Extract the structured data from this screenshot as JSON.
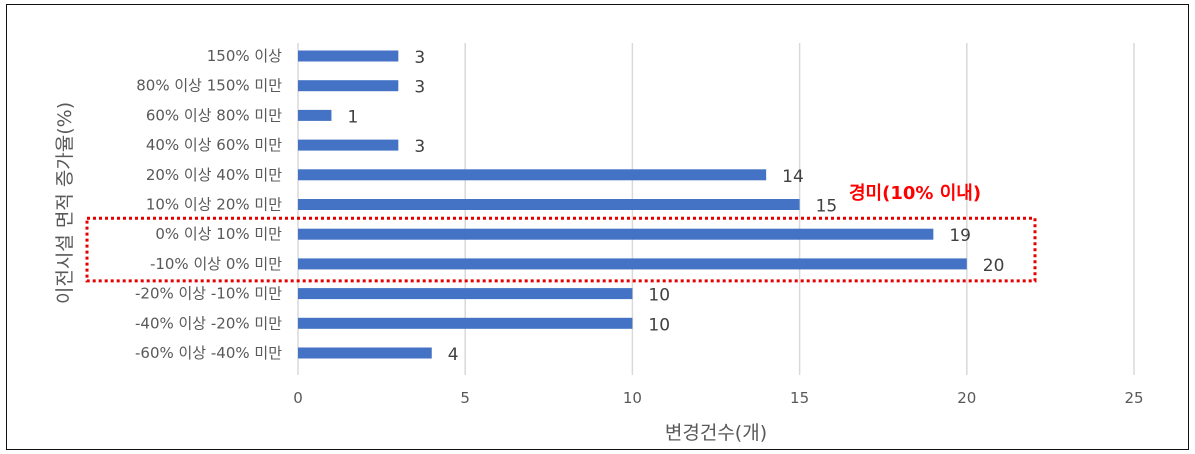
{
  "chart_data": {
    "type": "bar",
    "orientation": "horizontal",
    "categories": [
      "150% 이상",
      "80% 이상 150% 미만",
      "60% 이상 80% 미만",
      "40% 이상 60% 미만",
      "20% 이상 40% 미만",
      "10% 이상 20% 미만",
      "0% 이상 10% 미만",
      "-10% 이상 0% 미만",
      "-20% 이상 -10% 미만",
      "-40% 이상 -20% 미만",
      "-60% 이상 -40% 미만"
    ],
    "values": [
      3,
      3,
      1,
      3,
      14,
      15,
      19,
      20,
      10,
      10,
      4
    ],
    "xlabel": "변경건수(개)",
    "ylabel": "이전시설 면적 증가율(%)",
    "xlim": [
      0,
      25
    ],
    "xticks": [
      0,
      5,
      10,
      15,
      20,
      25
    ],
    "grid": "vertical",
    "bar_color": "#4472C4",
    "annotation": {
      "text": "경미(10% 이내)",
      "color": "#ff0000",
      "highlight_categories": [
        "0% 이상 10% 미만",
        "-10% 이상 0% 미만"
      ]
    }
  }
}
